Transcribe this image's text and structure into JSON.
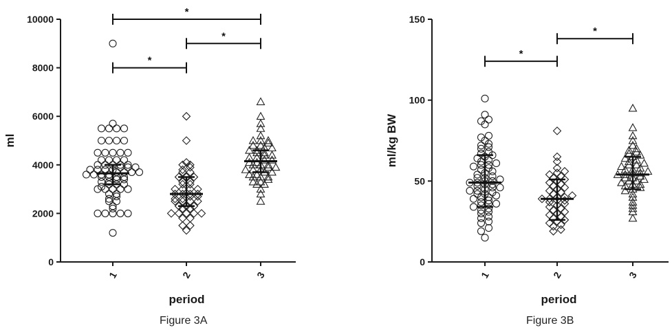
{
  "figures": [
    {
      "caption": "Figure 3A"
    },
    {
      "caption": "Figure 3B"
    }
  ],
  "chart_data": [
    {
      "type": "scatter",
      "subtype": "dot-plot-with-median-iqr",
      "title": "",
      "xlabel": "period",
      "ylabel": "ml",
      "categories": [
        "1",
        "2",
        "3"
      ],
      "ylim": [
        0,
        10000
      ],
      "yticks": [
        "0",
        "2000",
        "4000",
        "6000",
        "8000",
        "10000"
      ],
      "grid": false,
      "series": [
        {
          "category": "1",
          "marker": "circle",
          "median": 3650,
          "q1": 3200,
          "q3": 4000,
          "values": [
            1200,
            2000,
            2000,
            2000,
            2000,
            2000,
            2200,
            2300,
            2500,
            2500,
            2600,
            2700,
            2800,
            2800,
            3000,
            3000,
            3000,
            3000,
            3000,
            3100,
            3200,
            3200,
            3200,
            3300,
            3300,
            3400,
            3400,
            3500,
            3500,
            3500,
            3500,
            3600,
            3600,
            3600,
            3600,
            3700,
            3700,
            3700,
            3700,
            3800,
            3800,
            3800,
            3800,
            3900,
            3900,
            3900,
            4000,
            4000,
            4000,
            4000,
            4000,
            4200,
            4200,
            4200,
            4200,
            4500,
            4500,
            4500,
            4500,
            4500,
            5000,
            5000,
            5000,
            5000,
            5500,
            5500,
            5500,
            5500,
            5700,
            9000
          ]
        },
        {
          "category": "2",
          "marker": "diamond",
          "median": 2800,
          "q1": 2300,
          "q3": 3500,
          "values": [
            1300,
            1500,
            1500,
            1800,
            1800,
            2000,
            2000,
            2000,
            2000,
            2000,
            2200,
            2200,
            2300,
            2300,
            2300,
            2500,
            2500,
            2500,
            2500,
            2600,
            2600,
            2700,
            2700,
            2800,
            2800,
            2800,
            2800,
            3000,
            3000,
            3000,
            3000,
            3200,
            3200,
            3300,
            3300,
            3500,
            3500,
            3500,
            3700,
            3700,
            3800,
            3900,
            4000,
            4000,
            4100,
            5000,
            6000
          ]
        },
        {
          "category": "3",
          "marker": "triangle",
          "median": 4150,
          "q1": 3700,
          "q3": 4600,
          "values": [
            2500,
            2800,
            3000,
            3200,
            3200,
            3300,
            3300,
            3400,
            3500,
            3500,
            3500,
            3600,
            3600,
            3700,
            3700,
            3800,
            3800,
            3800,
            3900,
            3900,
            4000,
            4000,
            4000,
            4100,
            4100,
            4200,
            4200,
            4300,
            4300,
            4400,
            4400,
            4500,
            4500,
            4600,
            4600,
            4700,
            4700,
            4800,
            4800,
            4900,
            5000,
            5000,
            5000,
            5200,
            5500,
            5700,
            6000,
            6600
          ]
        }
      ],
      "significance": [
        {
          "from": "1",
          "to": "3",
          "y": 10000,
          "label": "*"
        },
        {
          "from": "2",
          "to": "3",
          "y": 9000,
          "label": "*"
        },
        {
          "from": "1",
          "to": "2",
          "y": 8000,
          "label": "*"
        }
      ]
    },
    {
      "type": "scatter",
      "subtype": "dot-plot-with-median-iqr",
      "title": "",
      "xlabel": "period",
      "ylabel": "ml/kg BW",
      "categories": [
        "1",
        "2",
        "3"
      ],
      "ylim": [
        0,
        150
      ],
      "yticks": [
        "0",
        "50",
        "100",
        "150"
      ],
      "grid": false,
      "series": [
        {
          "category": "1",
          "marker": "circle",
          "median": 49,
          "q1": 34,
          "q3": 66,
          "values": [
            15,
            19,
            21,
            24,
            25,
            27,
            28,
            30,
            31,
            32,
            33,
            34,
            35,
            36,
            36,
            37,
            38,
            39,
            40,
            40,
            41,
            42,
            42,
            43,
            44,
            44,
            45,
            46,
            46,
            47,
            48,
            48,
            49,
            49,
            50,
            50,
            51,
            52,
            52,
            53,
            54,
            55,
            56,
            57,
            58,
            59,
            60,
            60,
            61,
            62,
            63,
            64,
            65,
            66,
            67,
            68,
            70,
            71,
            72,
            73,
            75,
            77,
            78,
            85,
            87,
            88,
            91,
            101
          ]
        },
        {
          "category": "2",
          "marker": "diamond",
          "median": 39,
          "q1": 26,
          "q3": 51,
          "values": [
            19,
            20,
            22,
            23,
            24,
            25,
            26,
            27,
            28,
            29,
            30,
            31,
            32,
            33,
            34,
            35,
            36,
            37,
            38,
            38,
            39,
            39,
            40,
            40,
            41,
            42,
            43,
            44,
            45,
            46,
            47,
            48,
            49,
            50,
            51,
            52,
            53,
            54,
            55,
            56,
            58,
            62,
            65,
            81
          ]
        },
        {
          "category": "3",
          "marker": "triangle",
          "median": 54,
          "q1": 45,
          "q3": 65,
          "values": [
            27,
            31,
            33,
            35,
            37,
            40,
            42,
            44,
            45,
            46,
            47,
            48,
            48,
            49,
            50,
            50,
            51,
            52,
            52,
            53,
            54,
            54,
            55,
            55,
            56,
            57,
            57,
            58,
            59,
            60,
            60,
            61,
            62,
            63,
            64,
            65,
            66,
            67,
            68,
            69,
            70,
            72,
            75,
            78,
            83,
            95
          ]
        }
      ],
      "significance": [
        {
          "from": "2",
          "to": "3",
          "y": 138,
          "label": "*"
        },
        {
          "from": "1",
          "to": "2",
          "y": 124,
          "label": "*"
        }
      ]
    }
  ]
}
